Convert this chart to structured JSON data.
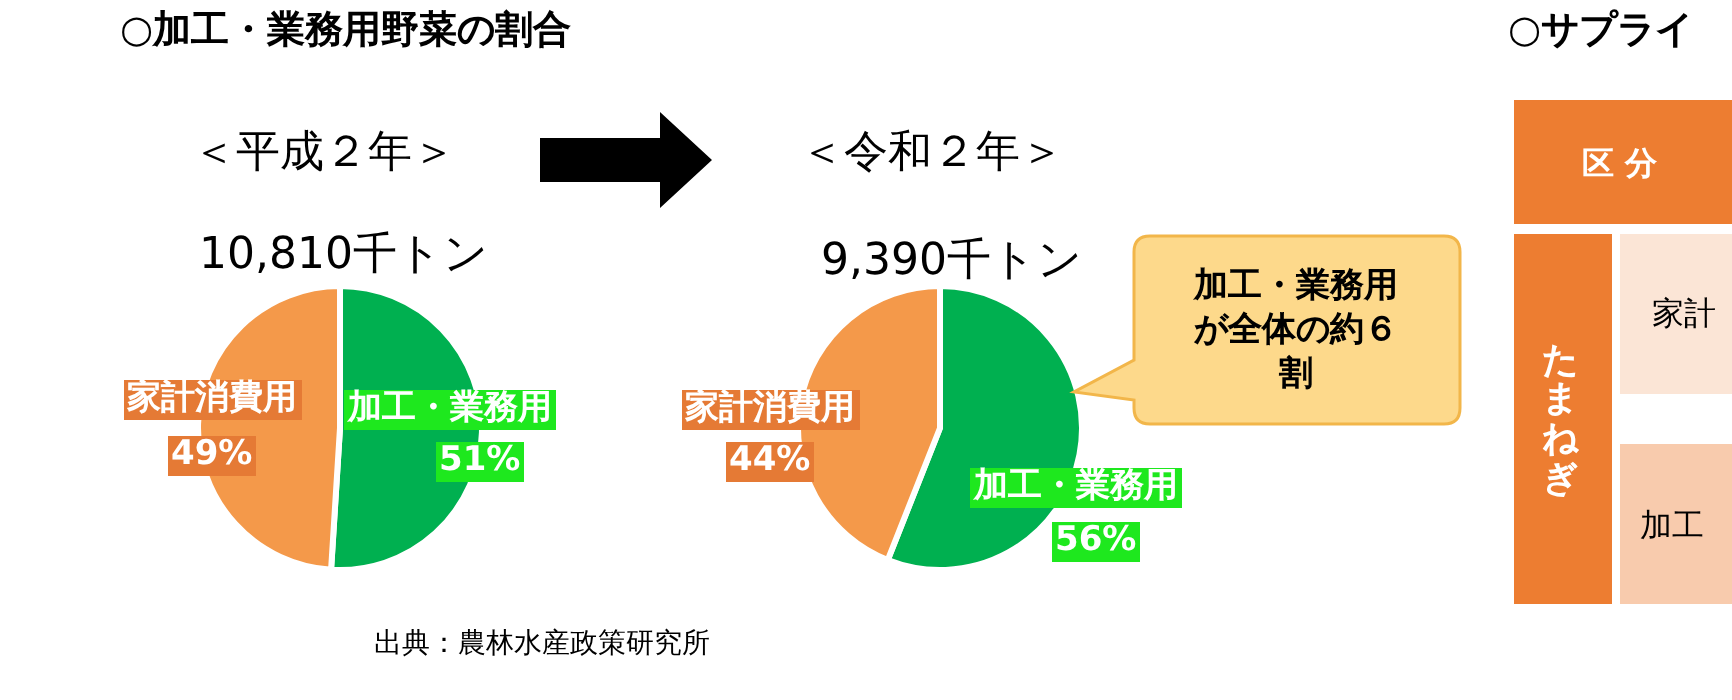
{
  "chart_data": [
    {
      "type": "pie",
      "title": "○加工・業務用野菜の割合",
      "subtitle": "＜平成２年＞",
      "categories": [
        "加工・業務用",
        "家計消費用"
      ],
      "values": [
        51,
        49
      ],
      "value_labels": [
        "51%",
        "49%"
      ],
      "colors": [
        "#00b050",
        "#f4994a"
      ],
      "annotations": [
        "10,810千トン",
        "出典：農林水産政策研究所"
      ]
    },
    {
      "type": "pie",
      "title": "＜令和２年＞",
      "categories": [
        "加工・業務用",
        "家計消費用"
      ],
      "values": [
        56,
        44
      ],
      "value_labels": [
        "56%",
        "44%"
      ],
      "colors": [
        "#00b050",
        "#f4994a"
      ],
      "annotations": [
        "9,390千トン",
        "加工・業務用が全体の約６割"
      ]
    },
    {
      "type": "other",
      "title": "○サプライ",
      "annotations": [
        "区 分",
        "たまねぎ",
        "家計",
        "加工"
      ]
    }
  ]
}
